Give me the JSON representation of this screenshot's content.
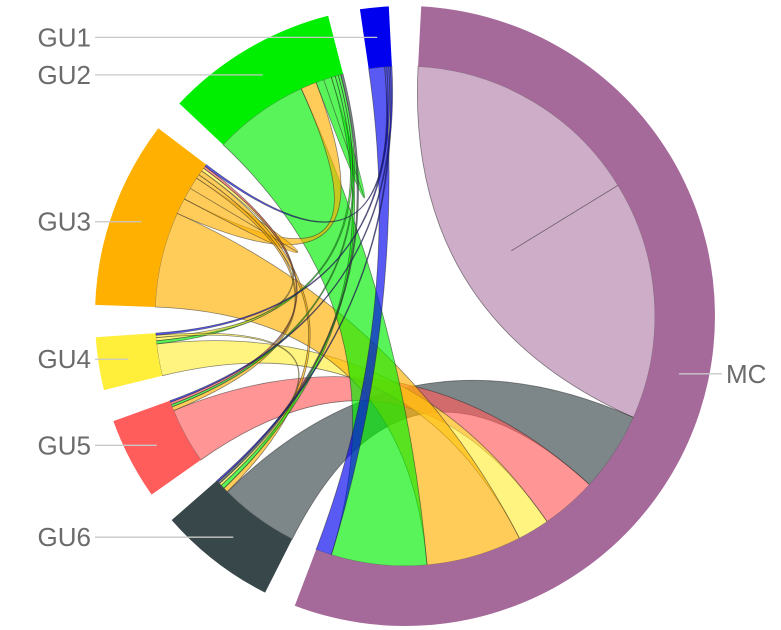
{
  "chart_data": {
    "type": "chord",
    "sectors": [
      {
        "id": "MC",
        "label": "MC",
        "color": "#a5699a"
      },
      {
        "id": "GU6",
        "label": "GU6",
        "color": "#37474a"
      },
      {
        "id": "GU5",
        "label": "GU5",
        "color": "#ff5c5c"
      },
      {
        "id": "GU4",
        "label": "GU4",
        "color": "#ffee3a"
      },
      {
        "id": "GU3",
        "label": "GU3",
        "color": "#ffb000"
      },
      {
        "id": "GU2",
        "label": "GU2",
        "color": "#00ee00"
      },
      {
        "id": "GU1",
        "label": "GU1",
        "color": "#0000ee"
      }
    ],
    "flows": [
      {
        "source": "MC",
        "target": "MC",
        "value": 30
      },
      {
        "source": "GU6",
        "target": "MC",
        "value": 10
      },
      {
        "source": "GU5",
        "target": "MC",
        "value": 7
      },
      {
        "source": "GU4",
        "target": "MC",
        "value": 4
      },
      {
        "source": "GU3",
        "target": "MC",
        "value": 12
      },
      {
        "source": "GU2",
        "target": "MC",
        "value": 12
      },
      {
        "source": "GU1",
        "target": "MC",
        "value": 2
      },
      {
        "source": "GU3",
        "target": "GU2",
        "value": 2
      },
      {
        "source": "GU3",
        "target": "GU3",
        "value": 1.5
      },
      {
        "source": "GU3",
        "target": "GU5",
        "value": 0.5
      },
      {
        "source": "GU3",
        "target": "GU6",
        "value": 0.6
      },
      {
        "source": "GU2",
        "target": "GU2",
        "value": 1
      },
      {
        "source": "GU2",
        "target": "GU6",
        "value": 0.5
      },
      {
        "source": "GU2",
        "target": "GU4",
        "value": 0.4
      },
      {
        "source": "GU2",
        "target": "GU5",
        "value": 0.3
      },
      {
        "source": "GU4",
        "target": "GU3",
        "value": 0.4
      },
      {
        "source": "GU4",
        "target": "GU6",
        "value": 0.3
      },
      {
        "source": "GU5",
        "target": "GU3",
        "value": 0.3
      },
      {
        "source": "GU6",
        "target": "GU2",
        "value": 0.3
      },
      {
        "source": "GU1",
        "target": "GU3",
        "value": 0.25
      },
      {
        "source": "GU1",
        "target": "GU4",
        "value": 0.25
      },
      {
        "source": "GU1",
        "target": "GU6",
        "value": 0.2
      },
      {
        "source": "GU1",
        "target": "GU5",
        "value": 0.2
      }
    ]
  }
}
